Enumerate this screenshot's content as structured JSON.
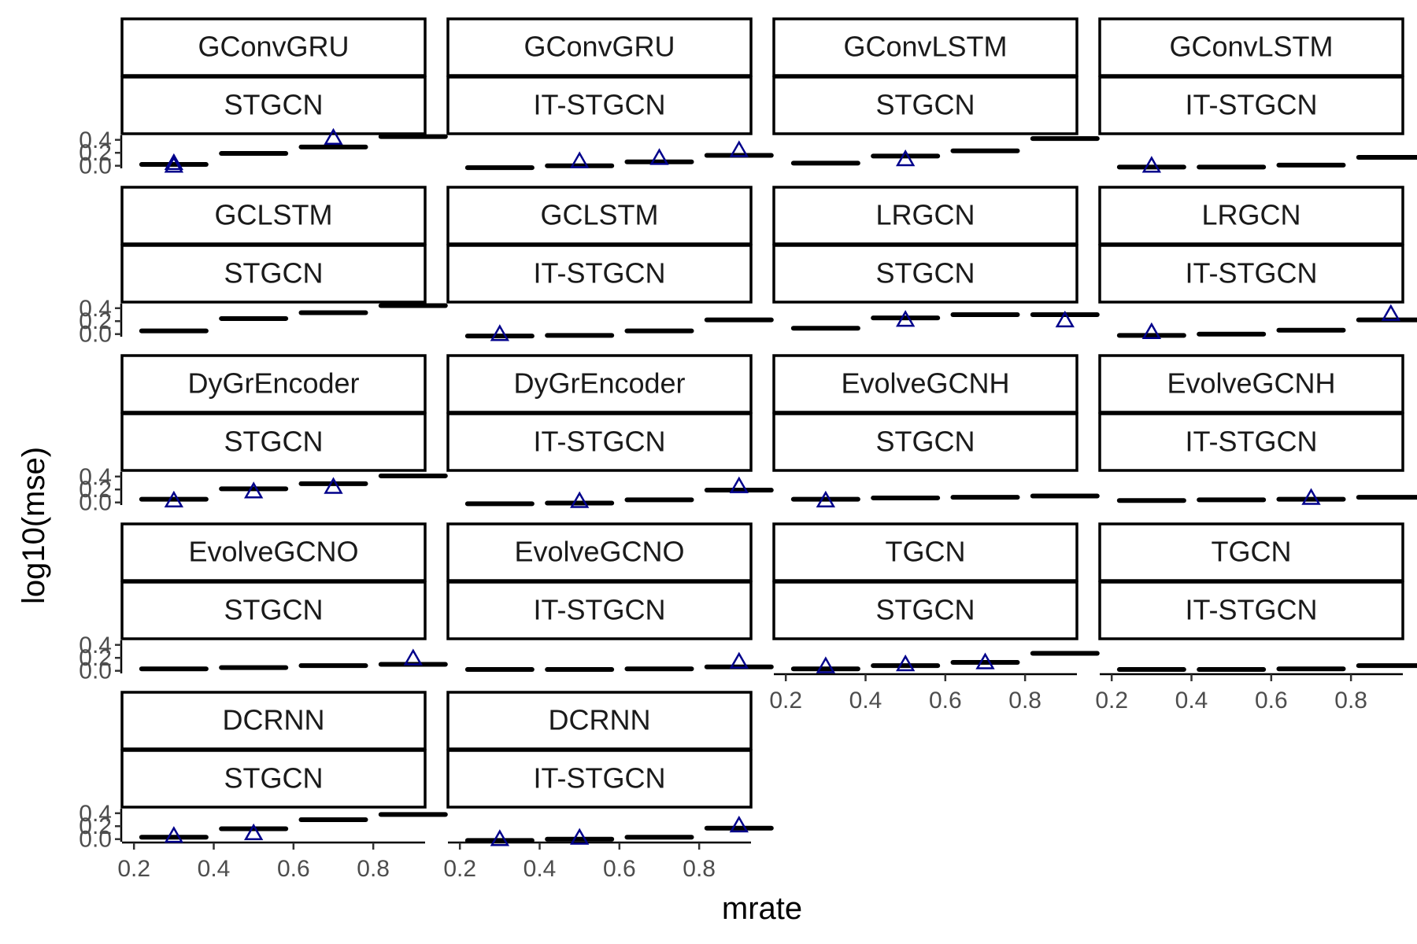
{
  "chart_data": {
    "type": "boxplot",
    "layout": "facet_wrap",
    "xlabel": "mrate",
    "ylabel": "log10(mse)",
    "x_ticks": [
      "0.2",
      "0.4",
      "0.6",
      "0.8"
    ],
    "x_tick_values": [
      0.2,
      0.4,
      0.6,
      0.8
    ],
    "y_ticks": [
      "0.0",
      "0.2",
      "0.4"
    ],
    "y_tick_values": [
      0.0,
      0.2,
      0.4
    ],
    "xlim": [
      0.17,
      0.93
    ],
    "ylim": [
      -0.04,
      0.47
    ],
    "categories": [
      0.3,
      0.5,
      0.7,
      0.9
    ],
    "outlier_marker": "open-triangle",
    "outlier_color": "#00008b",
    "panels": [
      {
        "strip_top": "GConvGRU",
        "strip_bottom": "STGCN",
        "values": [
          0.02,
          0.19,
          0.29,
          0.45
        ],
        "outliers": [
          {
            "x": 0.3,
            "y": 0.04
          },
          {
            "x": 0.3,
            "y": 0.0
          },
          {
            "x": 0.7,
            "y": 0.43
          }
        ]
      },
      {
        "strip_top": "GConvGRU",
        "strip_bottom": "IT-STGCN",
        "values": [
          -0.03,
          0.0,
          0.06,
          0.16
        ],
        "outliers": [
          {
            "x": 0.5,
            "y": 0.07
          },
          {
            "x": 0.7,
            "y": 0.12
          },
          {
            "x": 0.9,
            "y": 0.24
          }
        ]
      },
      {
        "strip_top": "GConvLSTM",
        "strip_bottom": "STGCN",
        "values": [
          0.04,
          0.15,
          0.23,
          0.42
        ],
        "outliers": [
          {
            "x": 0.5,
            "y": 0.1
          }
        ]
      },
      {
        "strip_top": "GConvLSTM",
        "strip_bottom": "IT-STGCN",
        "values": [
          -0.02,
          -0.02,
          0.01,
          0.13
        ],
        "outliers": [
          {
            "x": 0.3,
            "y": 0.0
          }
        ]
      },
      {
        "strip_top": "GCLSTM",
        "strip_bottom": "STGCN",
        "values": [
          0.05,
          0.24,
          0.33,
          0.44
        ],
        "outliers": []
      },
      {
        "strip_top": "GCLSTM",
        "strip_bottom": "IT-STGCN",
        "values": [
          -0.03,
          -0.02,
          0.05,
          0.22
        ],
        "outliers": [
          {
            "x": 0.3,
            "y": 0.0
          }
        ]
      },
      {
        "strip_top": "LRGCN",
        "strip_bottom": "STGCN",
        "values": [
          0.09,
          0.25,
          0.3,
          0.3
        ],
        "outliers": [
          {
            "x": 0.5,
            "y": 0.22
          },
          {
            "x": 0.9,
            "y": 0.21
          }
        ]
      },
      {
        "strip_top": "LRGCN",
        "strip_bottom": "IT-STGCN",
        "values": [
          -0.02,
          0.0,
          0.06,
          0.22
        ],
        "outliers": [
          {
            "x": 0.3,
            "y": 0.03
          },
          {
            "x": 0.9,
            "y": 0.31
          }
        ]
      },
      {
        "strip_top": "DyGrEncoder",
        "strip_bottom": "STGCN",
        "values": [
          0.05,
          0.21,
          0.29,
          0.41
        ],
        "outliers": [
          {
            "x": 0.3,
            "y": 0.03
          },
          {
            "x": 0.5,
            "y": 0.17
          },
          {
            "x": 0.7,
            "y": 0.24
          }
        ]
      },
      {
        "strip_top": "DyGrEncoder",
        "strip_bottom": "IT-STGCN",
        "values": [
          -0.02,
          -0.01,
          0.04,
          0.19
        ],
        "outliers": [
          {
            "x": 0.5,
            "y": 0.02
          },
          {
            "x": 0.9,
            "y": 0.25
          }
        ]
      },
      {
        "strip_top": "EvolveGCNH",
        "strip_bottom": "STGCN",
        "values": [
          0.05,
          0.07,
          0.08,
          0.1
        ],
        "outliers": [
          {
            "x": 0.3,
            "y": 0.03
          }
        ]
      },
      {
        "strip_top": "EvolveGCNH",
        "strip_bottom": "IT-STGCN",
        "values": [
          0.03,
          0.04,
          0.05,
          0.08
        ],
        "outliers": [
          {
            "x": 0.7,
            "y": 0.07
          }
        ]
      },
      {
        "strip_top": "EvolveGCNO",
        "strip_bottom": "STGCN",
        "values": [
          0.03,
          0.05,
          0.08,
          0.1
        ],
        "outliers": [
          {
            "x": 0.9,
            "y": 0.19
          }
        ]
      },
      {
        "strip_top": "EvolveGCNO",
        "strip_bottom": "IT-STGCN",
        "values": [
          0.02,
          0.02,
          0.03,
          0.06
        ],
        "outliers": [
          {
            "x": 0.9,
            "y": 0.14
          }
        ]
      },
      {
        "strip_top": "TGCN",
        "strip_bottom": "STGCN",
        "values": [
          0.03,
          0.08,
          0.13,
          0.27
        ],
        "outliers": [
          {
            "x": 0.3,
            "y": 0.07
          },
          {
            "x": 0.5,
            "y": 0.1
          },
          {
            "x": 0.7,
            "y": 0.13
          }
        ]
      },
      {
        "strip_top": "TGCN",
        "strip_bottom": "IT-STGCN",
        "values": [
          0.02,
          0.02,
          0.03,
          0.08
        ],
        "outliers": []
      },
      {
        "strip_top": "DCRNN",
        "strip_bottom": "STGCN",
        "values": [
          0.03,
          0.16,
          0.3,
          0.38
        ],
        "outliers": [
          {
            "x": 0.3,
            "y": 0.05
          },
          {
            "x": 0.5,
            "y": 0.09
          }
        ]
      },
      {
        "strip_top": "DCRNN",
        "strip_bottom": "IT-STGCN",
        "values": [
          -0.02,
          0.0,
          0.03,
          0.17
        ],
        "outliers": [
          {
            "x": 0.3,
            "y": 0.0
          },
          {
            "x": 0.5,
            "y": 0.02
          },
          {
            "x": 0.9,
            "y": 0.21
          }
        ]
      }
    ]
  }
}
